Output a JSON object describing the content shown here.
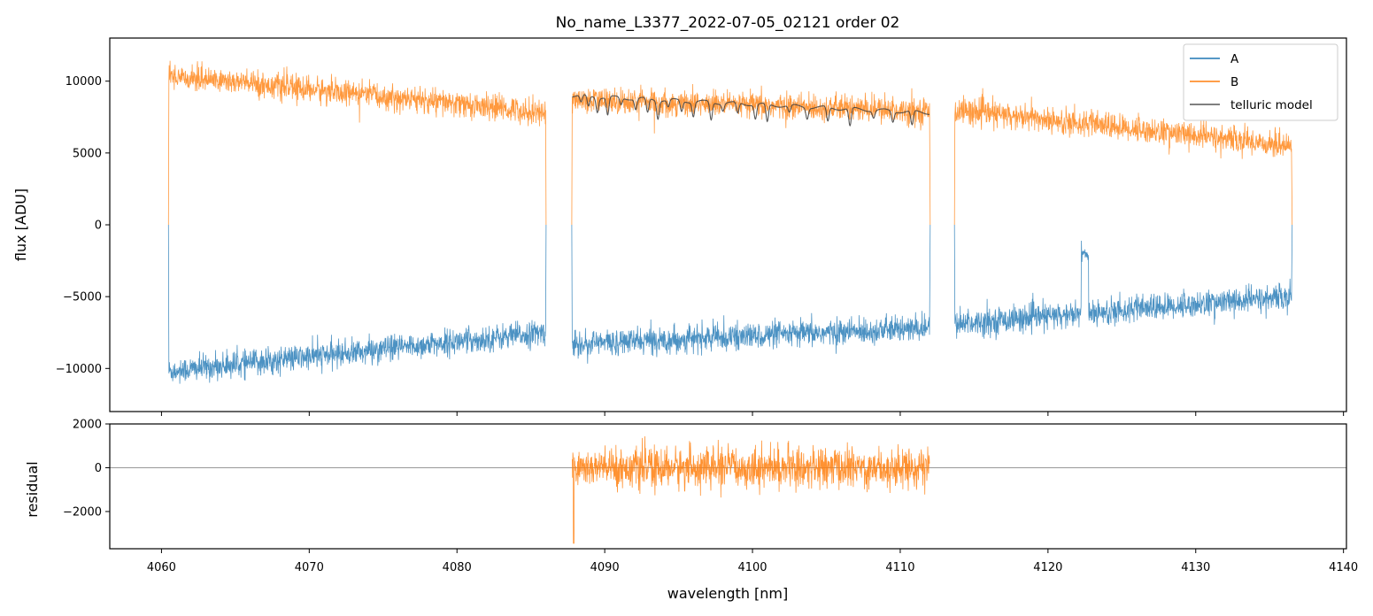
{
  "chart_data": {
    "type": "line",
    "title": "No_name_L3377_2022-07-05_02121  order 02",
    "xlabel": "wavelength [nm]",
    "xlim": [
      4056.5,
      4140.2
    ],
    "xticks": [
      4060,
      4070,
      4080,
      4090,
      4100,
      4110,
      4120,
      4130,
      4140
    ],
    "xtick_labels": [
      "4060",
      "4070",
      "4080",
      "4090",
      "4100",
      "4110",
      "4120",
      "4130",
      "4140"
    ],
    "panels": [
      {
        "name": "flux",
        "ylabel": "flux [ADU]",
        "ylim": [
          -13000,
          13000
        ],
        "yticks": [
          10000,
          5000,
          0,
          -5000,
          -10000
        ],
        "ytick_labels": [
          "10000",
          "5000",
          "0",
          "−5000",
          "−10000"
        ],
        "legend": {
          "position": "top-right",
          "entries": [
            "A",
            "B",
            "telluric model"
          ]
        },
        "series": [
          {
            "name": "A",
            "color": "#1f77b4",
            "segments": [
              {
                "x": [
                  4060.5,
                  4086.0
                ],
                "y": [
                  -10200,
                  -7500
                ]
              },
              {
                "x": [
                  4087.8,
                  4112.0
                ],
                "y": [
                  -8300,
                  -7200
                ]
              },
              {
                "x": [
                  4113.7,
                  4136.5
                ],
                "y": [
                  -6900,
                  -5000
                ]
              }
            ],
            "noise_std": 450,
            "features": [
              {
                "x": 4122.5,
                "y": -2000,
                "note": "spike"
              }
            ]
          },
          {
            "name": "B",
            "color": "#ff7f0e",
            "segments": [
              {
                "x": [
                  4060.5,
                  4086.0
                ],
                "y": [
                  10400,
                  7800
                ]
              },
              {
                "x": [
                  4087.8,
                  4112.0
                ],
                "y": [
                  8700,
                  7900
                ]
              },
              {
                "x": [
                  4113.7,
                  4136.5
                ],
                "y": [
                  8000,
                  5500
                ]
              }
            ],
            "noise_std": 450
          },
          {
            "name": "telluric model",
            "color": "#444444",
            "x": [
              4087.8,
              4112.0
            ],
            "y": [
              9000,
              7800
            ],
            "absorption_lines": [
              4088.4,
              4088.9,
              4089.5,
              4090.2,
              4091.1,
              4092.1,
              4092.9,
              4093.6,
              4094.3,
              4095.2,
              4096.0,
              4097.2,
              4098.0,
              4099.0,
              4100.2,
              4101.0,
              4102.5,
              4103.7,
              4105.1,
              4106.6,
              4108.2,
              4109.5,
              4110.8
            ]
          }
        ]
      },
      {
        "name": "residual",
        "ylabel": "residual",
        "ylim": [
          -3700,
          2000
        ],
        "yticks": [
          2000,
          0,
          -2000
        ],
        "ytick_labels": [
          "2000",
          "0",
          "−2000"
        ],
        "zero_line": true,
        "series": [
          {
            "name": "B",
            "color": "#ff7f0e",
            "x": [
              4087.8,
              4112.0
            ],
            "y": [
              0,
              0
            ],
            "noise_std": 450,
            "features": [
              {
                "x": 4087.9,
                "y": -3450,
                "note": "dip"
              }
            ]
          }
        ]
      }
    ]
  }
}
